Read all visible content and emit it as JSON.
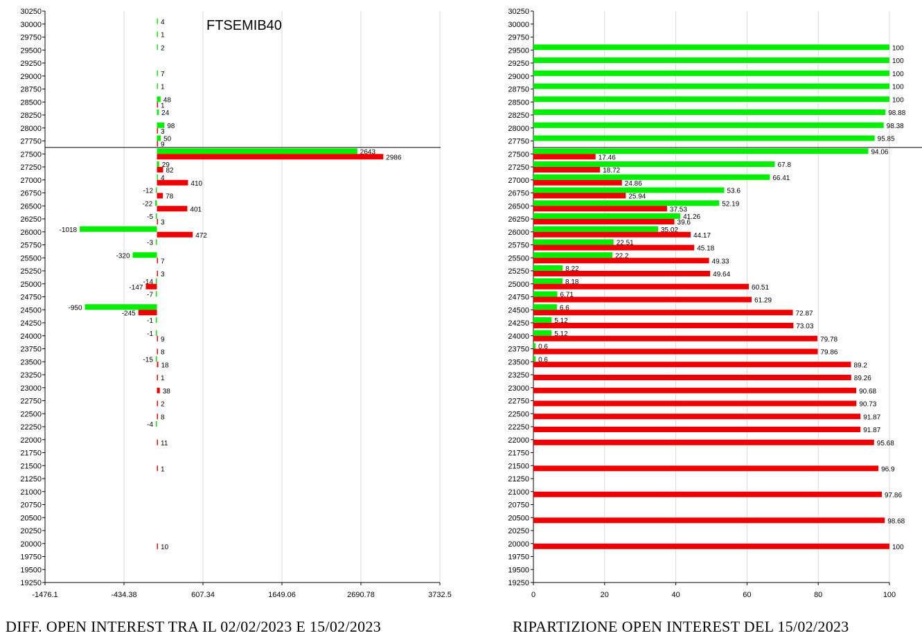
{
  "chart_data": [
    {
      "type": "bar",
      "orientation": "horizontal",
      "title": "FTSEMIB40",
      "caption": "DIFF. OPEN INTEREST TRA IL 02/02/2023 E 15/02/2023",
      "y_ticks": [
        30250,
        30000,
        29750,
        29500,
        29250,
        29000,
        28750,
        28500,
        28250,
        28000,
        27750,
        27500,
        27250,
        27000,
        26750,
        26500,
        26250,
        26000,
        25750,
        25500,
        25250,
        25000,
        24750,
        24500,
        24250,
        24000,
        23750,
        23500,
        23250,
        23000,
        22750,
        22500,
        22250,
        22000,
        21750,
        21500,
        21250,
        21000,
        20750,
        20500,
        20250,
        20000,
        19750,
        19500,
        19250
      ],
      "x_ticks": [
        "-1476.1",
        "-434.38",
        "607.34",
        "1649.06",
        "2690.78",
        "3732.5"
      ],
      "xlim": [
        -1476.1,
        3732.5
      ],
      "ylim": [
        19250,
        30250
      ],
      "reference_line_strike": 27625,
      "grid": "vertical",
      "series": [
        {
          "color": "#00ee00",
          "points": [
            {
              "strike": 30000,
              "value": 4
            },
            {
              "strike": 29750,
              "value": 1
            },
            {
              "strike": 29500,
              "value": 2
            },
            {
              "strike": 29000,
              "value": 7
            },
            {
              "strike": 28750,
              "value": 1
            },
            {
              "strike": 28500,
              "value": 48
            },
            {
              "strike": 28250,
              "value": 24
            },
            {
              "strike": 28000,
              "value": 98
            },
            {
              "strike": 27750,
              "value": 50
            },
            {
              "strike": 27500,
              "value": 2643
            },
            {
              "strike": 27250,
              "value": 29
            },
            {
              "strike": 27000,
              "value": 4
            },
            {
              "strike": 26750,
              "value": -12
            },
            {
              "strike": 26500,
              "value": -22
            },
            {
              "strike": 26250,
              "value": -5
            },
            {
              "strike": 26000,
              "value": -1018
            },
            {
              "strike": 25750,
              "value": -3
            },
            {
              "strike": 25500,
              "value": -320
            },
            {
              "strike": 25000,
              "value": -14
            },
            {
              "strike": 24750,
              "value": -7
            },
            {
              "strike": 24500,
              "value": -950
            },
            {
              "strike": 24250,
              "value": -1
            },
            {
              "strike": 24000,
              "value": -1
            },
            {
              "strike": 23500,
              "value": -15
            },
            {
              "strike": 22250,
              "value": -4
            }
          ]
        },
        {
          "color": "#ee0000",
          "points": [
            {
              "strike": 28500,
              "value": 1
            },
            {
              "strike": 28000,
              "value": 3
            },
            {
              "strike": 27750,
              "value": 9
            },
            {
              "strike": 27500,
              "value": 2986
            },
            {
              "strike": 27250,
              "value": 82
            },
            {
              "strike": 27000,
              "value": 410
            },
            {
              "strike": 26750,
              "value": 78
            },
            {
              "strike": 26500,
              "value": 401
            },
            {
              "strike": 26250,
              "value": 3
            },
            {
              "strike": 26000,
              "value": 472
            },
            {
              "strike": 25500,
              "value": 7
            },
            {
              "strike": 25250,
              "value": 3
            },
            {
              "strike": 25000,
              "value": -147
            },
            {
              "strike": 24500,
              "value": -245
            },
            {
              "strike": 24000,
              "value": 9
            },
            {
              "strike": 23750,
              "value": 8
            },
            {
              "strike": 23500,
              "value": 18
            },
            {
              "strike": 23250,
              "value": 1
            },
            {
              "strike": 23000,
              "value": 38
            },
            {
              "strike": 22750,
              "value": 2
            },
            {
              "strike": 22500,
              "value": 8
            },
            {
              "strike": 22000,
              "value": 11
            },
            {
              "strike": 21500,
              "value": 1
            },
            {
              "strike": 20000,
              "value": 10
            }
          ]
        }
      ]
    },
    {
      "type": "bar",
      "orientation": "horizontal",
      "caption": "RIPARTIZIONE OPEN INTEREST DEL 15/02/2023",
      "y_ticks": [
        30250,
        30000,
        29750,
        29500,
        29250,
        29000,
        28750,
        28500,
        28250,
        28000,
        27750,
        27500,
        27250,
        27000,
        26750,
        26500,
        26250,
        26000,
        25750,
        25500,
        25250,
        25000,
        24750,
        24500,
        24250,
        24000,
        23750,
        23500,
        23250,
        23000,
        22750,
        22500,
        22250,
        22000,
        21750,
        21500,
        21250,
        21000,
        20750,
        20500,
        20250,
        20000,
        19750,
        19500,
        19250
      ],
      "x_ticks": [
        "0",
        "20",
        "40",
        "60",
        "80",
        "100"
      ],
      "xlim": [
        0,
        100
      ],
      "ylim": [
        19250,
        30250
      ],
      "reference_line_strike": 27625,
      "grid": "vertical",
      "series": [
        {
          "color": "#00ee00",
          "points": [
            {
              "strike": 29500,
              "value": 100
            },
            {
              "strike": 29250,
              "value": 100
            },
            {
              "strike": 29000,
              "value": 100
            },
            {
              "strike": 28750,
              "value": 100
            },
            {
              "strike": 28500,
              "value": 100
            },
            {
              "strike": 28250,
              "value": 98.88
            },
            {
              "strike": 28000,
              "value": 98.38
            },
            {
              "strike": 27750,
              "value": 95.85
            },
            {
              "strike": 27500,
              "value": 94.06
            },
            {
              "strike": 27250,
              "value": 67.8
            },
            {
              "strike": 27000,
              "value": 66.41
            },
            {
              "strike": 26750,
              "value": 53.6
            },
            {
              "strike": 26500,
              "value": 52.19
            },
            {
              "strike": 26250,
              "value": 41.26
            },
            {
              "strike": 26000,
              "value": 35.02
            },
            {
              "strike": 25750,
              "value": 22.51
            },
            {
              "strike": 25500,
              "value": 22.2
            },
            {
              "strike": 25250,
              "value": 8.22
            },
            {
              "strike": 25000,
              "value": 8.18
            },
            {
              "strike": 24750,
              "value": 6.71
            },
            {
              "strike": 24500,
              "value": 6.6
            },
            {
              "strike": 24250,
              "value": 5.12
            },
            {
              "strike": 24000,
              "value": 5.12
            },
            {
              "strike": 23750,
              "value": 0.6
            },
            {
              "strike": 23500,
              "value": 0.6
            }
          ]
        },
        {
          "color": "#ee0000",
          "points": [
            {
              "strike": 27500,
              "value": 17.46
            },
            {
              "strike": 27250,
              "value": 18.72
            },
            {
              "strike": 27000,
              "value": 24.86
            },
            {
              "strike": 26750,
              "value": 25.94
            },
            {
              "strike": 26500,
              "value": 37.53
            },
            {
              "strike": 26250,
              "value": 39.6
            },
            {
              "strike": 26000,
              "value": 44.17
            },
            {
              "strike": 25750,
              "value": 45.18
            },
            {
              "strike": 25500,
              "value": 49.33
            },
            {
              "strike": 25250,
              "value": 49.64
            },
            {
              "strike": 25000,
              "value": 60.51
            },
            {
              "strike": 24750,
              "value": 61.29
            },
            {
              "strike": 24500,
              "value": 72.87
            },
            {
              "strike": 24250,
              "value": 73.03
            },
            {
              "strike": 24000,
              "value": 79.78
            },
            {
              "strike": 23750,
              "value": 79.86
            },
            {
              "strike": 23500,
              "value": 89.2
            },
            {
              "strike": 23250,
              "value": 89.26
            },
            {
              "strike": 23000,
              "value": 90.68
            },
            {
              "strike": 22750,
              "value": 90.73
            },
            {
              "strike": 22500,
              "value": 91.87
            },
            {
              "strike": 22250,
              "value": 91.87
            },
            {
              "strike": 22000,
              "value": 95.68
            },
            {
              "strike": 21500,
              "value": 96.9
            },
            {
              "strike": 21000,
              "value": 97.86
            },
            {
              "strike": 20500,
              "value": 98.68
            },
            {
              "strike": 20000,
              "value": 100
            }
          ]
        }
      ]
    }
  ]
}
